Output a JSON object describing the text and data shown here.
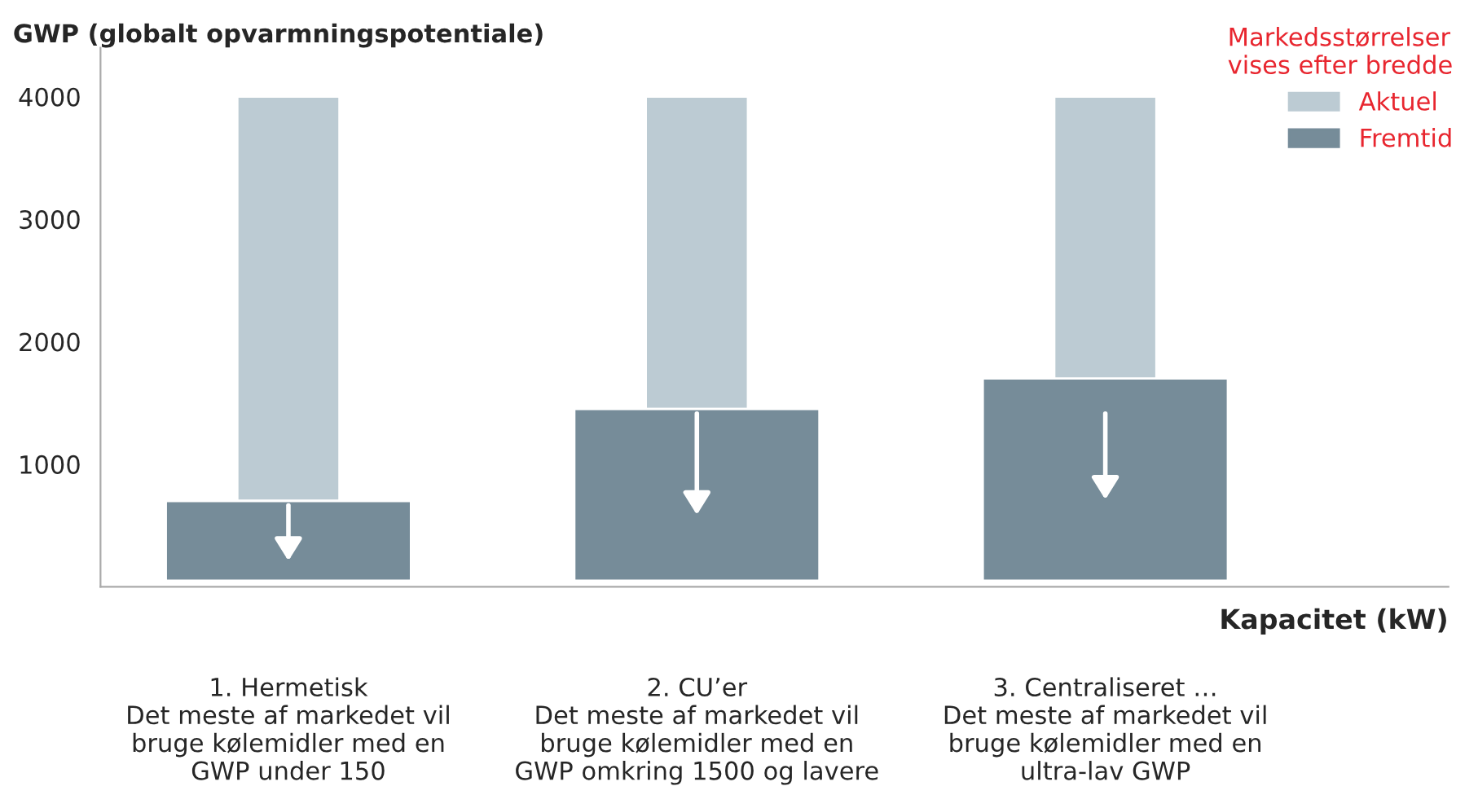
{
  "chart_data": {
    "type": "bar",
    "ylabel": "GWP (globalt opvarmningspotentiale)",
    "xlabel": "Kapacitet (kW)",
    "categories": [
      "1. Hermetisk\nDet meste af markedet vil\nbruge kølemidler med en\nGWP under 150",
      "2. CU’er\nDet meste af markedet vil\nbruge kølemidler med en\nGWP omkring 1500 og lavere",
      "3. Centraliseret …\nDet meste af markedet vil\nbruge kølemidler med en\nultra-lav GWP"
    ],
    "series": [
      {
        "name": "Aktuel",
        "color": "#bccbd3",
        "base": [
          700,
          1450,
          1450
        ],
        "values": [
          3300,
          2550,
          2550
        ]
      },
      {
        "name": "Fremtid",
        "color": "#768c99",
        "base": [
          50,
          50,
          50
        ],
        "values": [
          650,
          1400,
          1650
        ]
      }
    ],
    "ylim": [
      0,
      4400
    ],
    "yticks": [
      1000,
      2000,
      3000,
      4000
    ],
    "legend": "top right",
    "legend_title": "Markedsstørrelser\nvises efter bredde",
    "grid": false
  }
}
